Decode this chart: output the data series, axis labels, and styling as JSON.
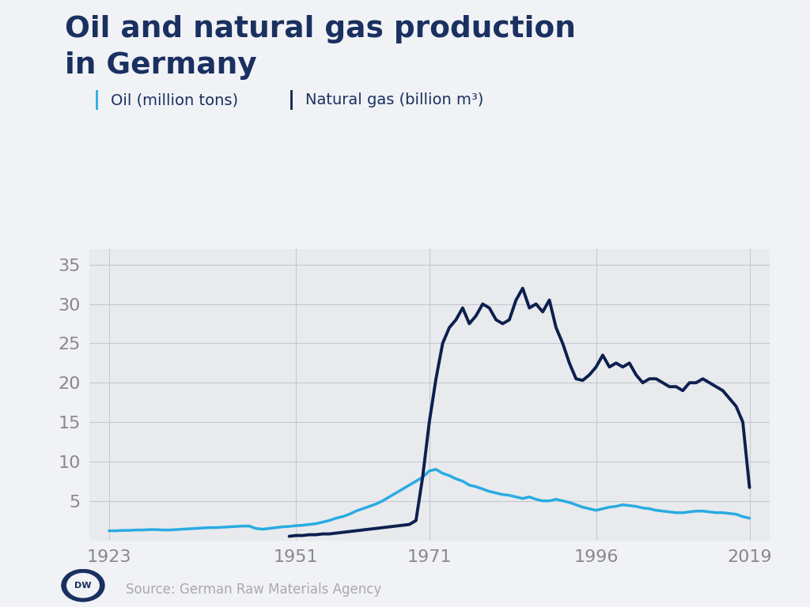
{
  "title_line1": "Oil and natural gas production",
  "title_line2": "in Germany",
  "title_color": "#1a3060",
  "background_color": "#f0f2f5",
  "plot_bg_color": "#e8eaed",
  "oil_color": "#29abe2",
  "gas_color": "#0d1f4e",
  "oil_label": "Oil (million tons)",
  "gas_label": "Natural gas (billion m³)",
  "source_text": "Source: German Raw Materials Agency",
  "xticks": [
    1923,
    1951,
    1971,
    1996,
    2019
  ],
  "yticks": [
    5,
    10,
    15,
    20,
    25,
    30,
    35
  ],
  "ylim": [
    0,
    37
  ],
  "xlim": [
    1920,
    2022
  ],
  "oil_years": [
    1923,
    1924,
    1925,
    1926,
    1927,
    1928,
    1929,
    1930,
    1931,
    1932,
    1933,
    1934,
    1935,
    1936,
    1937,
    1938,
    1939,
    1940,
    1941,
    1942,
    1943,
    1944,
    1945,
    1946,
    1947,
    1948,
    1949,
    1950,
    1951,
    1952,
    1953,
    1954,
    1955,
    1956,
    1957,
    1958,
    1959,
    1960,
    1961,
    1962,
    1963,
    1964,
    1965,
    1966,
    1967,
    1968,
    1969,
    1970,
    1971,
    1972,
    1973,
    1974,
    1975,
    1976,
    1977,
    1978,
    1979,
    1980,
    1981,
    1982,
    1983,
    1984,
    1985,
    1986,
    1987,
    1988,
    1989,
    1990,
    1991,
    1992,
    1993,
    1994,
    1995,
    1996,
    1997,
    1998,
    1999,
    2000,
    2001,
    2002,
    2003,
    2004,
    2005,
    2006,
    2007,
    2008,
    2009,
    2010,
    2011,
    2012,
    2013,
    2014,
    2015,
    2016,
    2017,
    2018,
    2019
  ],
  "oil_values": [
    1.2,
    1.2,
    1.25,
    1.25,
    1.3,
    1.3,
    1.35,
    1.35,
    1.3,
    1.3,
    1.35,
    1.4,
    1.45,
    1.5,
    1.55,
    1.6,
    1.6,
    1.65,
    1.7,
    1.75,
    1.8,
    1.8,
    1.5,
    1.4,
    1.5,
    1.6,
    1.7,
    1.75,
    1.85,
    1.9,
    2.0,
    2.1,
    2.3,
    2.5,
    2.8,
    3.0,
    3.3,
    3.7,
    4.0,
    4.3,
    4.6,
    5.0,
    5.5,
    6.0,
    6.5,
    7.0,
    7.5,
    8.0,
    8.8,
    9.0,
    8.5,
    8.2,
    7.8,
    7.5,
    7.0,
    6.8,
    6.5,
    6.2,
    6.0,
    5.8,
    5.7,
    5.5,
    5.3,
    5.5,
    5.2,
    5.0,
    5.0,
    5.2,
    5.0,
    4.8,
    4.5,
    4.2,
    4.0,
    3.8,
    4.0,
    4.2,
    4.3,
    4.5,
    4.4,
    4.3,
    4.1,
    4.0,
    3.8,
    3.7,
    3.6,
    3.5,
    3.5,
    3.6,
    3.7,
    3.7,
    3.6,
    3.5,
    3.5,
    3.4,
    3.3,
    3.0,
    2.8
  ],
  "gas_years": [
    1950,
    1951,
    1952,
    1953,
    1954,
    1955,
    1956,
    1957,
    1958,
    1959,
    1960,
    1961,
    1962,
    1963,
    1964,
    1965,
    1966,
    1967,
    1968,
    1969,
    1970,
    1971,
    1972,
    1973,
    1974,
    1975,
    1976,
    1977,
    1978,
    1979,
    1980,
    1981,
    1982,
    1983,
    1984,
    1985,
    1986,
    1987,
    1988,
    1989,
    1990,
    1991,
    1992,
    1993,
    1994,
    1995,
    1996,
    1997,
    1998,
    1999,
    2000,
    2001,
    2002,
    2003,
    2004,
    2005,
    2006,
    2007,
    2008,
    2009,
    2010,
    2011,
    2012,
    2013,
    2014,
    2015,
    2016,
    2017,
    2018,
    2019
  ],
  "gas_values": [
    0.5,
    0.6,
    0.6,
    0.7,
    0.7,
    0.8,
    0.8,
    0.9,
    1.0,
    1.1,
    1.2,
    1.3,
    1.4,
    1.5,
    1.6,
    1.7,
    1.8,
    1.9,
    2.0,
    2.5,
    8.0,
    15.0,
    20.5,
    25.0,
    27.0,
    28.0,
    29.5,
    27.5,
    28.5,
    30.0,
    29.5,
    28.0,
    27.5,
    28.0,
    30.5,
    32.0,
    29.5,
    30.0,
    29.0,
    30.5,
    27.0,
    25.0,
    22.5,
    20.5,
    20.3,
    21.0,
    22.0,
    23.5,
    22.0,
    22.5,
    22.0,
    22.5,
    21.0,
    20.0,
    20.5,
    20.5,
    20.0,
    19.5,
    19.5,
    19.0,
    20.0,
    20.0,
    20.5,
    20.0,
    19.5,
    19.0,
    18.0,
    17.0,
    15.0,
    6.7
  ]
}
